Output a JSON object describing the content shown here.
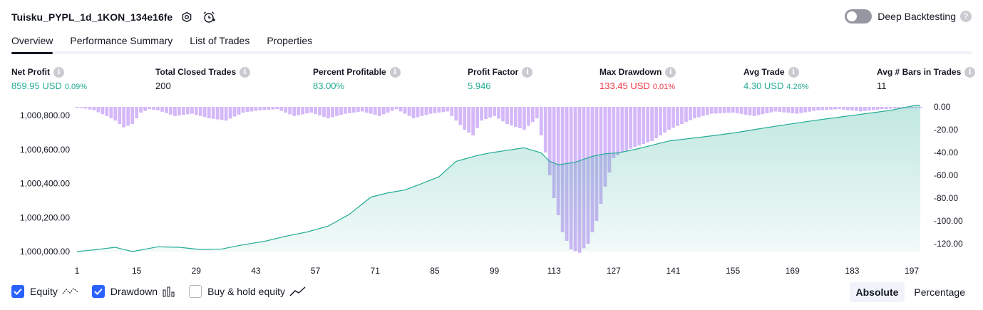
{
  "header": {
    "strategy_title": "Tuisku_PYPL_1d_1KON_134e16fe",
    "deep_backtesting_label": "Deep Backtesting",
    "deep_backtesting_enabled": false
  },
  "tabs": [
    {
      "label": "Overview",
      "active": true
    },
    {
      "label": "Performance Summary",
      "active": false
    },
    {
      "label": "List of Trades",
      "active": false
    },
    {
      "label": "Properties",
      "active": false
    }
  ],
  "metrics": {
    "net_profit": {
      "label": "Net Profit",
      "value": "859.95 USD",
      "sub": "0.09%"
    },
    "total_closed_trades": {
      "label": "Total Closed Trades",
      "value": "200"
    },
    "percent_profitable": {
      "label": "Percent Profitable",
      "value": "83.00%"
    },
    "profit_factor": {
      "label": "Profit Factor",
      "value": "5.946"
    },
    "max_drawdown": {
      "label": "Max Drawdown",
      "value": "133.45 USD",
      "sub": "0.01%"
    },
    "avg_trade": {
      "label": "Avg Trade",
      "value": "4.30 USD",
      "sub": "4.26%"
    },
    "avg_bars": {
      "label": "Avg # Bars in Trades",
      "value": "11"
    }
  },
  "chart_data": {
    "type": "area",
    "series": [
      {
        "name": "Equity",
        "color": "#22ab94",
        "x": [
          1,
          5,
          10,
          14,
          20,
          25,
          30,
          35,
          40,
          45,
          50,
          55,
          60,
          65,
          70,
          74,
          78,
          82,
          86,
          90,
          95,
          98,
          102,
          106,
          110,
          112,
          114,
          118,
          122,
          125,
          128,
          132,
          136,
          140,
          146,
          150,
          156,
          162,
          168,
          174,
          180,
          186,
          192,
          198
        ],
        "values": [
          1000000,
          1000010,
          1000025,
          1000000,
          1000028,
          1000025,
          1000012,
          1000015,
          1000040,
          1000060,
          1000090,
          1000115,
          1000150,
          1000220,
          1000320,
          1000345,
          1000362,
          1000400,
          1000440,
          1000530,
          1000565,
          1000580,
          1000595,
          1000610,
          1000580,
          1000530,
          1000510,
          1000525,
          1000560,
          1000575,
          1000580,
          1000600,
          1000625,
          1000650,
          1000668,
          1000680,
          1000700,
          1000725,
          1000748,
          1000770,
          1000790,
          1000810,
          1000830,
          1000860
        ]
      },
      {
        "name": "Drawdown",
        "color": "#d4b8f9",
        "x": [
          1,
          5,
          8,
          10,
          12,
          14,
          16,
          18,
          20,
          24,
          28,
          32,
          36,
          40,
          44,
          48,
          52,
          56,
          60,
          64,
          68,
          72,
          76,
          80,
          84,
          88,
          92,
          94,
          96,
          99,
          102,
          106,
          109,
          111,
          113,
          115,
          117,
          119,
          121,
          123,
          125,
          127,
          129,
          132,
          136,
          140,
          146,
          150,
          155,
          160,
          165,
          170,
          175,
          180,
          185,
          190,
          195,
          199
        ],
        "values": [
          0,
          -3,
          -8,
          -12,
          -18,
          -15,
          -5,
          -2,
          -3,
          -8,
          -6,
          -10,
          -12,
          -5,
          -3,
          -2,
          -8,
          -5,
          -10,
          -6,
          -4,
          -8,
          -2,
          -10,
          -6,
          -4,
          -20,
          -25,
          -12,
          -8,
          -15,
          -20,
          -10,
          -40,
          -80,
          -110,
          -125,
          -128,
          -120,
          -100,
          -70,
          -45,
          -40,
          -35,
          -30,
          -20,
          -10,
          -6,
          -5,
          -8,
          -4,
          -6,
          -3,
          -2,
          -4,
          -2,
          -1,
          0
        ]
      }
    ],
    "y_left": {
      "ticks": [
        "1,000,800.00",
        "1,000,600.00",
        "1,000,400.00",
        "1,000,200.00",
        "1,000,000.00"
      ],
      "range": [
        999990,
        1000860
      ]
    },
    "y_right": {
      "ticks": [
        "0.00",
        "-20.00",
        "-40.00",
        "-60.00",
        "-80.00",
        "-100.00",
        "-120.00"
      ],
      "range": [
        -128,
        0
      ]
    },
    "x_ticks": [
      "1",
      "15",
      "29",
      "43",
      "57",
      "71",
      "85",
      "99",
      "113",
      "127",
      "141",
      "155",
      "169",
      "183",
      "197"
    ]
  },
  "legend": {
    "equity_label": "Equity",
    "drawdown_label": "Drawdown",
    "buyhold_label": "Buy & hold equity"
  },
  "modes": {
    "absolute_label": "Absolute",
    "percentage_label": "Percentage"
  }
}
